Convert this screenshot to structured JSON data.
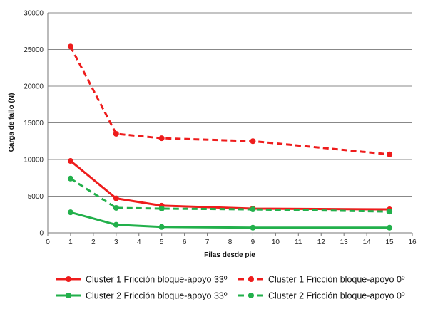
{
  "chart_data": {
    "type": "line",
    "title": "",
    "xlabel": "Filas desde pie",
    "ylabel": "Carga de fallo (N)",
    "xlim": [
      0,
      16
    ],
    "ylim": [
      0,
      30000
    ],
    "xticks": [
      0,
      1,
      2,
      3,
      4,
      5,
      6,
      7,
      8,
      9,
      10,
      11,
      12,
      13,
      14,
      15,
      16
    ],
    "yticks": [
      0,
      5000,
      10000,
      15000,
      20000,
      25000,
      30000
    ],
    "grid": "horizontal",
    "legend_position": "bottom",
    "series": [
      {
        "name": "Cluster 1 Fricción bloque-apoyo 33º",
        "color": "#ee1c1c",
        "dash": "solid",
        "x": [
          1,
          3,
          5,
          9,
          15
        ],
        "y": [
          9800,
          4700,
          3700,
          3300,
          3200
        ]
      },
      {
        "name": "Cluster 1 Fricción bloque-apoyo 0º",
        "color": "#ee1c1c",
        "dash": "dashed",
        "x": [
          1,
          3,
          5,
          9,
          15
        ],
        "y": [
          25400,
          13500,
          12900,
          12500,
          10700
        ]
      },
      {
        "name": "Cluster 2 Fricción bloque-apoyo 33º",
        "color": "#22b04b",
        "dash": "solid",
        "x": [
          1,
          3,
          5,
          9,
          15
        ],
        "y": [
          2800,
          1100,
          800,
          700,
          700
        ]
      },
      {
        "name": "Cluster 2 Fricción bloque-apoyo 0º",
        "color": "#22b04b",
        "dash": "dashed",
        "x": [
          1,
          3,
          5,
          9,
          15
        ],
        "y": [
          7400,
          3400,
          3300,
          3200,
          2900
        ]
      }
    ]
  }
}
